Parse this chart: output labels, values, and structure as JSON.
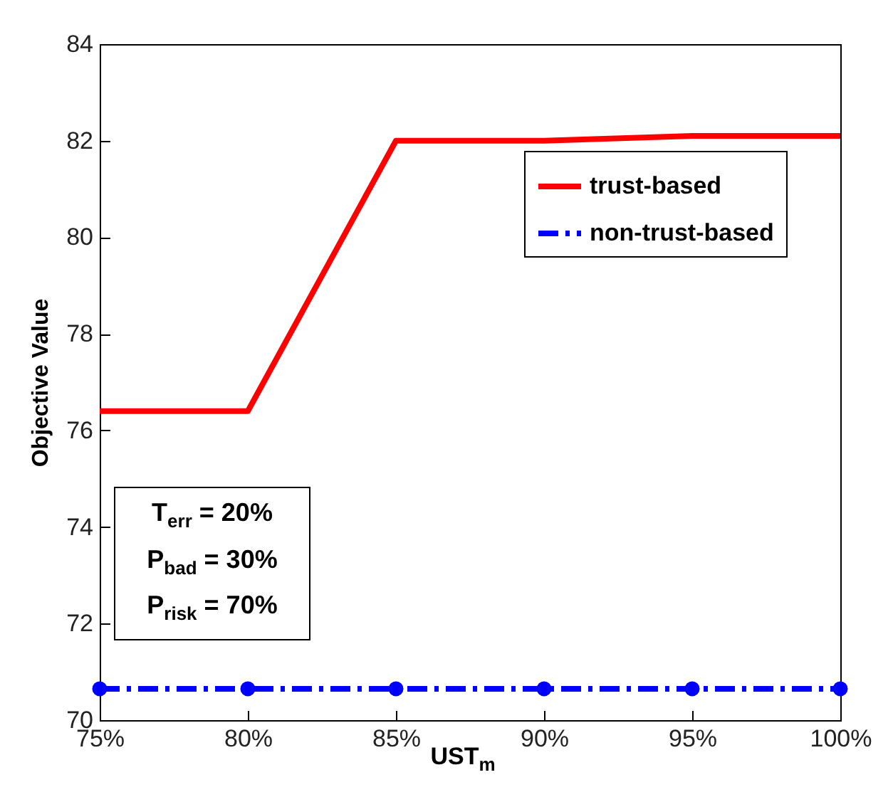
{
  "chart_data": {
    "type": "line",
    "xlabel": "UST$_{m}$",
    "ylabel": "Objective Value",
    "x": [
      75,
      80,
      85,
      90,
      95,
      100
    ],
    "series": [
      {
        "name": "trust-based",
        "color": "#ff0000",
        "values": [
          76.4,
          76.4,
          82,
          82,
          82.1,
          82.1
        ],
        "marker": "none",
        "line_style": "solid"
      },
      {
        "name": "non-trust-based",
        "color": "#0000ff",
        "values": [
          70.65,
          70.65,
          70.65,
          70.65,
          70.65,
          70.65
        ],
        "marker": "circle",
        "line_style": "dashed"
      }
    ],
    "xlim": [
      75,
      100
    ],
    "xticks": [
      {
        "value": 75,
        "label": "75%"
      },
      {
        "value": 80,
        "label": "80%"
      },
      {
        "value": 85,
        "label": "85%"
      },
      {
        "value": 90,
        "label": "90%"
      },
      {
        "value": 95,
        "label": "95%"
      },
      {
        "value": 100,
        "label": "100%"
      }
    ],
    "ylim": [
      70,
      84
    ],
    "yticks": [
      70,
      72,
      74,
      76,
      78,
      80,
      82,
      84
    ],
    "grid": false,
    "legend": "top right",
    "annotations": [
      "T$_{err}$ = 20%",
      "P$_{bad}$ = 30%",
      "P$_{risk}$ = 70%"
    ]
  }
}
